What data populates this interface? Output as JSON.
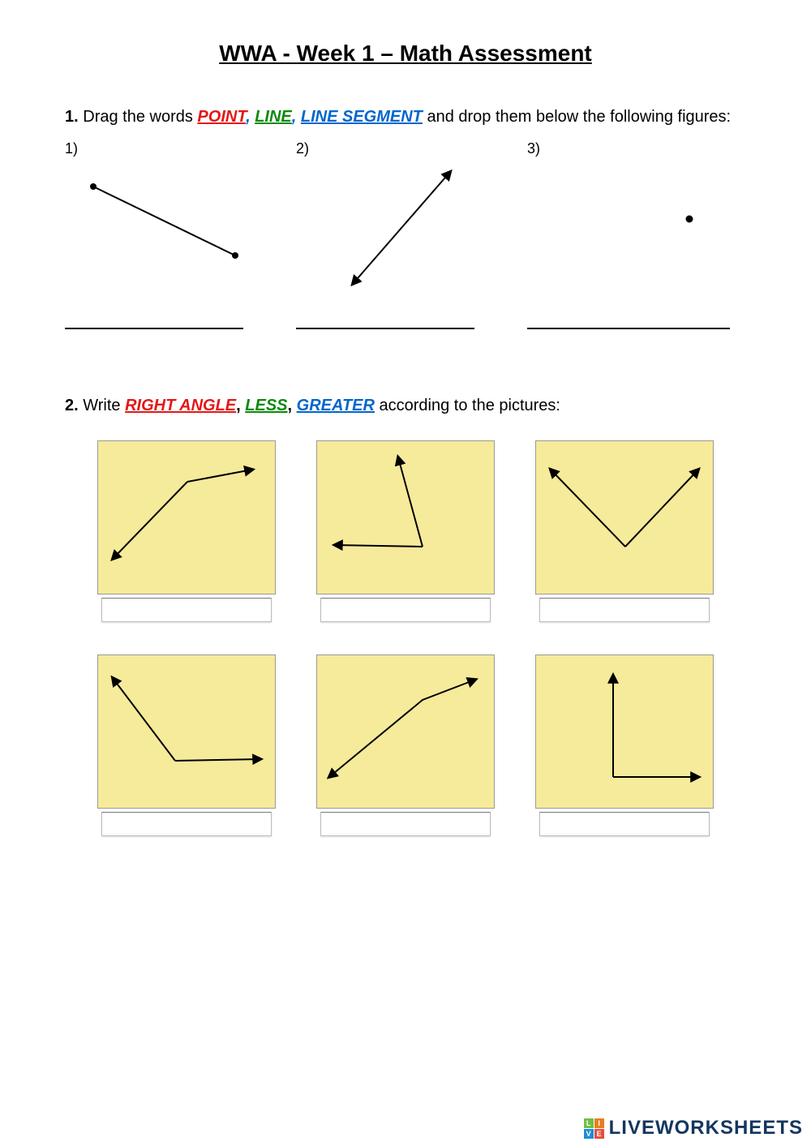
{
  "title": "WWA - Week 1 – Math Assessment",
  "q1": {
    "num": "1.",
    "lead": " Drag the words ",
    "kw1": "POINT",
    "sep1": ", ",
    "kw2": "LINE",
    "sep2": ", ",
    "kw3": "LINE SEGMENT",
    "tail": " and drop them below the following figures:",
    "colors": {
      "kw1": "#e31818",
      "sep": "#0066cc",
      "kw2": "#0a8a0a",
      "kw3": "#0066cc"
    },
    "items": [
      {
        "label": "1)",
        "type": "line-segment"
      },
      {
        "label": "2)",
        "type": "line"
      },
      {
        "label": "3)",
        "type": "point"
      }
    ]
  },
  "q2": {
    "num": "2.",
    "lead": " Write ",
    "kw1": "RIGHT ANGLE",
    "sep1": ", ",
    "kw2": "LESS",
    "sep2": ", ",
    "kw3": "GREATER",
    "tail": " according to the pictures:",
    "colors": {
      "kw1": "#e31818",
      "sep": "#000000",
      "kw2": "#0a8a0a",
      "kw3": "#0066cc"
    },
    "tile_bg": "#f6ea9b",
    "tile_border": "#9a9a9a",
    "stroke": "#000000",
    "tiles": [
      {
        "rays": [
          [
            110,
            50,
            190,
            35
          ],
          [
            110,
            50,
            18,
            145
          ]
        ],
        "vertexAtEnd": false
      },
      {
        "rays": [
          [
            130,
            130,
            100,
            20
          ],
          [
            130,
            130,
            22,
            128
          ]
        ],
        "vertexAtEnd": false
      },
      {
        "rays": [
          [
            110,
            130,
            18,
            35
          ],
          [
            110,
            130,
            200,
            35
          ]
        ],
        "vertexAtEnd": false
      },
      {
        "rays": [
          [
            95,
            130,
            18,
            28
          ],
          [
            95,
            130,
            200,
            128
          ]
        ],
        "vertexAtEnd": false
      },
      {
        "rays": [
          [
            130,
            55,
            195,
            30
          ],
          [
            130,
            55,
            15,
            150
          ]
        ],
        "vertexAtEnd": false,
        "elbow": true
      },
      {
        "rays": [
          [
            95,
            150,
            95,
            25
          ],
          [
            95,
            150,
            200,
            150
          ]
        ],
        "vertexAtEnd": false
      }
    ]
  },
  "watermark": {
    "text": "LIVEWORKSHEETS",
    "text_color": "#14365f",
    "logo": [
      {
        "bg": "#6fbf44",
        "ch": "L"
      },
      {
        "bg": "#e67e22",
        "ch": "I"
      },
      {
        "bg": "#1f8dd6",
        "ch": "V"
      },
      {
        "bg": "#e74c3c",
        "ch": "E"
      }
    ]
  }
}
